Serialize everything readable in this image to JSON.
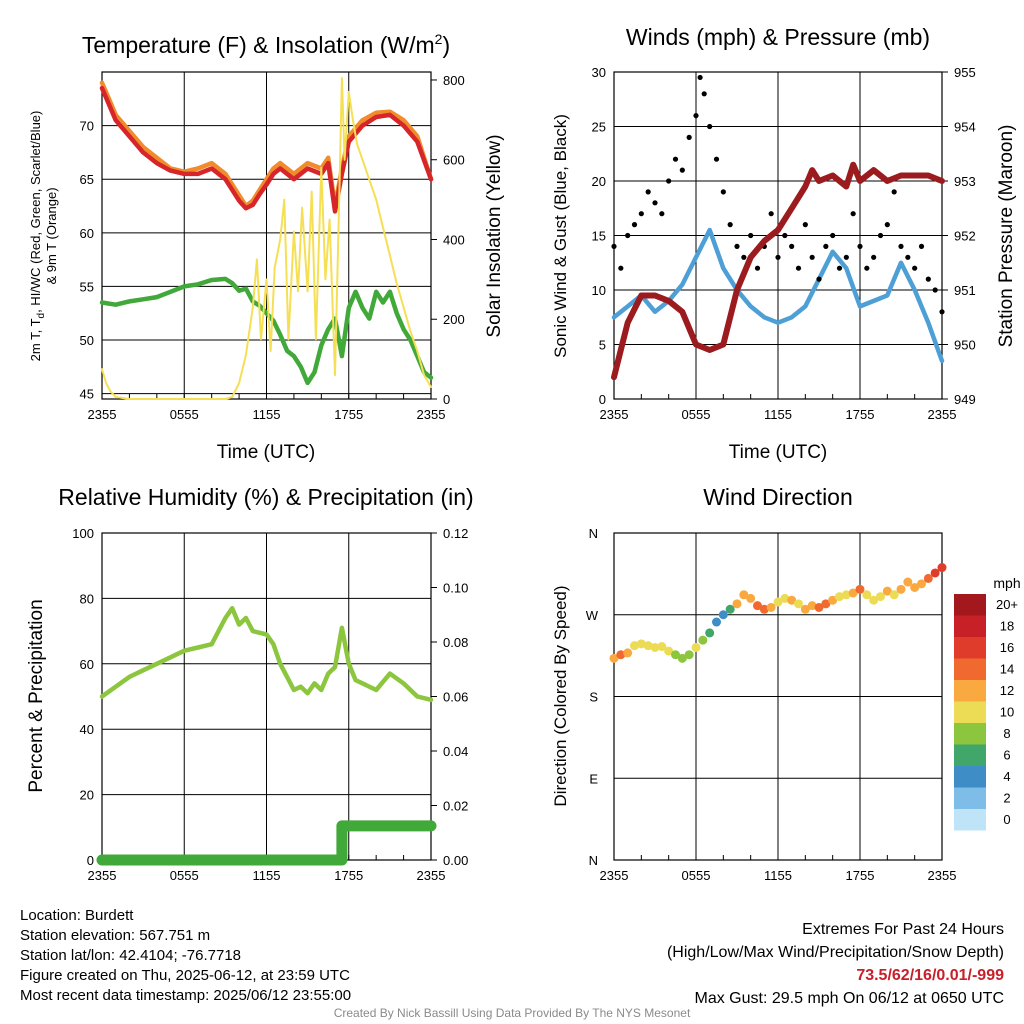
{
  "chart_data": [
    {
      "type": "line",
      "title": "Temperature (F) & Insolation (W/m",
      "title_sup": "2",
      "title_end": ")",
      "xlabel": "Time (UTC)",
      "ylabel": "2m T, T",
      "ylabel_sub": "d",
      "ylabel_rest": ", HI/WC (Red, Green, Scarlet/Blue)",
      "ylabel2": "& 9m T (Orange)",
      "y2label": "Solar Insolation (Yellow)",
      "x_ticks": [
        "2355",
        "0555",
        "1155",
        "1755",
        "2355"
      ],
      "y_ticks": [
        45,
        50,
        55,
        60,
        65,
        70
      ],
      "ylim": [
        44.5,
        75
      ],
      "y2_ticks": [
        0,
        200,
        400,
        600,
        800
      ],
      "y2lim": [
        0,
        820
      ],
      "grid": true,
      "x_hours": [
        0,
        6,
        12,
        18,
        24
      ],
      "series": [
        {
          "color": "#f08c2c",
          "axis": "left",
          "x": [
            0,
            0.5,
            1,
            2,
            3,
            4,
            5,
            6,
            7,
            8,
            9,
            10,
            10.5,
            11,
            11.5,
            12,
            12.5,
            13,
            14,
            15,
            16,
            16.5,
            17,
            17.5,
            18,
            19,
            20,
            21,
            22,
            23,
            24
          ],
          "y": [
            74,
            72.5,
            71,
            69.5,
            68,
            67,
            66,
            65.7,
            66,
            66.5,
            65.5,
            63.5,
            62.5,
            63,
            64,
            65,
            66,
            66.5,
            65.5,
            66.5,
            66,
            67,
            62.5,
            66,
            69,
            70.5,
            71.2,
            71.3,
            70.5,
            69,
            65
          ]
        },
        {
          "color": "#d7262a",
          "axis": "left",
          "x": [
            0,
            0.5,
            1,
            2,
            3,
            4,
            5,
            6,
            7,
            8,
            9,
            10,
            10.5,
            11,
            11.5,
            12,
            12.5,
            13,
            14,
            15,
            16,
            16.5,
            17,
            17.5,
            18,
            19,
            20,
            21,
            22,
            23,
            24
          ],
          "y": [
            73.5,
            72,
            70.5,
            69,
            67.5,
            66.5,
            65.8,
            65.5,
            65.5,
            66,
            65,
            63,
            62.3,
            62.6,
            63.6,
            64.5,
            65.5,
            66,
            65,
            66,
            65.5,
            66.5,
            62,
            65.5,
            68.5,
            70,
            70.8,
            71,
            70,
            68.5,
            65
          ]
        },
        {
          "color": "#41a83a",
          "axis": "left",
          "x": [
            0,
            1,
            2,
            3,
            4,
            5,
            6,
            7,
            8,
            9,
            9.5,
            10,
            10.5,
            11,
            11.5,
            12,
            12.5,
            13,
            13.5,
            14,
            14.5,
            15,
            15.5,
            16,
            16.5,
            17,
            17.5,
            18,
            18.5,
            19,
            19.5,
            20,
            20.5,
            21,
            21.5,
            22,
            22.5,
            23,
            23.5,
            24
          ],
          "y": [
            53.5,
            53.3,
            53.6,
            53.8,
            54,
            54.5,
            55,
            55.2,
            55.6,
            55.7,
            55.3,
            54.6,
            54.8,
            53.6,
            53.2,
            52.5,
            51.8,
            50.5,
            49,
            48.5,
            47.5,
            46,
            47,
            49.5,
            51,
            52,
            48.5,
            53,
            54.5,
            53,
            52,
            54.5,
            53.5,
            54.5,
            52.5,
            51,
            50,
            48.5,
            47,
            46.5
          ]
        },
        {
          "color": "#f5e055",
          "axis": "right",
          "x": [
            0,
            0.3,
            0.6,
            1,
            2,
            3,
            4,
            5,
            6,
            7,
            8,
            9,
            9.5,
            10,
            10.5,
            11,
            11.3,
            11.6,
            12,
            12.3,
            12.6,
            13,
            13.3,
            13.6,
            14,
            14.3,
            14.6,
            15,
            15.3,
            15.6,
            16,
            16.3,
            16.6,
            17,
            17.3,
            17.5,
            17.7,
            18,
            18.3,
            18.6,
            19,
            19.5,
            20,
            20.5,
            21,
            21.5,
            22,
            22.5,
            23,
            23.5,
            24
          ],
          "y": [
            75,
            40,
            20,
            5,
            0,
            0,
            0,
            0,
            0,
            0,
            0,
            0,
            5,
            40,
            110,
            230,
            350,
            150,
            300,
            120,
            330,
            400,
            500,
            150,
            420,
            270,
            480,
            270,
            520,
            150,
            580,
            300,
            450,
            60,
            500,
            805,
            600,
            770,
            700,
            640,
            600,
            550,
            500,
            430,
            360,
            290,
            230,
            170,
            120,
            60,
            30
          ]
        }
      ]
    },
    {
      "type": "line",
      "title": "Winds (mph) & Pressure (mb)",
      "xlabel": "Time (UTC)",
      "ylabel": "Sonic Wind & Gust (Blue, Black)",
      "y2label": "Station Pressure (Maroon)",
      "x_ticks": [
        "2355",
        "0555",
        "1155",
        "1755",
        "2355"
      ],
      "y_ticks": [
        0,
        5,
        10,
        15,
        20,
        25,
        30
      ],
      "ylim": [
        0,
        30
      ],
      "y2_ticks": [
        949,
        950,
        951,
        952,
        953,
        954,
        955
      ],
      "y2lim": [
        949,
        955
      ],
      "grid": true,
      "x_hours": [
        0,
        6,
        12,
        18,
        24
      ],
      "series": [
        {
          "name": "",
          "color": "#4d9fd6",
          "axis": "left",
          "x": [
            0,
            1,
            2,
            3,
            4,
            5,
            6,
            7,
            8,
            9,
            10,
            11,
            12,
            13,
            14,
            15,
            16,
            17,
            18,
            19,
            20,
            21,
            22,
            23,
            24
          ],
          "y": [
            7.5,
            8.5,
            9.5,
            8,
            9,
            10.5,
            13,
            15.5,
            12,
            10,
            8.5,
            7.5,
            7,
            7.5,
            8.5,
            11,
            13.5,
            12,
            8.5,
            9,
            9.5,
            12.5,
            10,
            7,
            3.5
          ]
        },
        {
          "name": "",
          "color": "#000000",
          "axis": "left",
          "mode": "points",
          "x": [
            0,
            0.5,
            1,
            1.5,
            2,
            2.5,
            3,
            3.5,
            4,
            4.5,
            5,
            5.5,
            6,
            6.3,
            6.6,
            7,
            7.5,
            8,
            8.5,
            9,
            9.5,
            10,
            10.5,
            11,
            11.5,
            12,
            12.5,
            13,
            13.5,
            14,
            14.5,
            15,
            15.5,
            16,
            16.5,
            17,
            17.5,
            18,
            18.5,
            19,
            19.5,
            20,
            20.5,
            21,
            21.5,
            22,
            22.5,
            23,
            23.5,
            24
          ],
          "y": [
            14,
            12,
            15,
            16,
            17,
            19,
            18,
            17,
            20,
            22,
            21,
            24,
            26,
            29.5,
            28,
            25,
            22,
            19,
            16,
            14,
            13,
            15,
            12,
            14,
            17,
            13,
            15,
            14,
            12,
            16,
            13,
            11,
            14,
            15,
            12,
            13,
            17,
            14,
            12,
            13,
            15,
            16,
            19,
            14,
            13,
            12,
            14,
            11,
            10,
            8
          ]
        },
        {
          "name": "",
          "color": "#9b1b1f",
          "axis": "right",
          "x": [
            0,
            0.5,
            1,
            2,
            3,
            4,
            5,
            6,
            7,
            8,
            9,
            10,
            11,
            12,
            13,
            14,
            14.5,
            15,
            16,
            17,
            17.5,
            18,
            19,
            20,
            21,
            22,
            23,
            24
          ],
          "y": [
            949.4,
            949.9,
            950.4,
            950.9,
            950.9,
            950.8,
            950.6,
            950.0,
            949.9,
            950.0,
            951.0,
            951.6,
            951.9,
            952.1,
            952.5,
            952.9,
            953.2,
            953.0,
            953.1,
            952.9,
            953.3,
            953.0,
            953.2,
            953.0,
            953.1,
            953.1,
            953.1,
            953.0
          ]
        }
      ]
    },
    {
      "type": "line",
      "title": "Relative Humidity (%) & Precipitation (in)",
      "ylabel": "Percent & Precipitation",
      "x_ticks": [
        "2355",
        "0555",
        "1155",
        "1755",
        "2355"
      ],
      "y_ticks": [
        0,
        20,
        40,
        60,
        80,
        100
      ],
      "ylim": [
        0,
        100
      ],
      "y2_ticks": [
        "0.00",
        "0.02",
        "0.04",
        "0.06",
        "0.08",
        "0.10",
        "0.12"
      ],
      "y2lim": [
        0,
        0.12
      ],
      "grid": true,
      "x_hours": [
        0,
        6,
        12,
        18,
        24
      ],
      "series": [
        {
          "color": "#8cc63f",
          "axis": "left",
          "x": [
            0,
            1,
            2,
            3,
            4,
            5,
            6,
            7,
            8,
            8.5,
            9,
            9.5,
            10,
            10.5,
            11,
            12,
            12.5,
            13,
            13.5,
            14,
            14.5,
            15,
            15.5,
            16,
            16.5,
            17,
            17.5,
            18,
            18.5,
            19,
            20,
            21,
            22,
            23,
            24
          ],
          "y": [
            50,
            53,
            56,
            58,
            60,
            62,
            64,
            65,
            66,
            70,
            74,
            77,
            72,
            74,
            70,
            69,
            66,
            60,
            56,
            52,
            53,
            51,
            54,
            52,
            57,
            59,
            71,
            60,
            55,
            54,
            52,
            57,
            54,
            50,
            49
          ]
        },
        {
          "color": "#41a83a",
          "axis": "right",
          "mode": "thick",
          "x": [
            0,
            17.5,
            17.5,
            24
          ],
          "y": [
            0,
            0,
            0.0125,
            0.0125
          ]
        }
      ]
    },
    {
      "type": "scatter",
      "title": "Wind Direction",
      "ylabel": "Direction (Colored By Speed)",
      "x_ticks": [
        "2355",
        "0555",
        "1155",
        "1755",
        "2355"
      ],
      "y_ticks": [
        "N",
        "E",
        "S",
        "W",
        "N"
      ],
      "ylim": [
        0,
        360
      ],
      "grid": true,
      "x_hours": [
        0,
        6,
        12,
        18,
        24
      ],
      "colorbar": {
        "title": "mph",
        "labels": [
          "20+",
          "18",
          "16",
          "14",
          "12",
          "10",
          "8",
          "6",
          "4",
          "2",
          "0"
        ],
        "colors": [
          "#a2181c",
          "#c72027",
          "#e03c2c",
          "#f06a30",
          "#f9a93f",
          "#ecdc55",
          "#8cc63f",
          "#41a66a",
          "#3e8dc6",
          "#7dbde8",
          "#bfe3f7"
        ]
      },
      "points": [
        {
          "x": 0,
          "y": 222,
          "c": 6
        },
        {
          "x": 0.5,
          "y": 226,
          "c": 7
        },
        {
          "x": 1,
          "y": 228,
          "c": 6
        },
        {
          "x": 1.5,
          "y": 236,
          "c": 5
        },
        {
          "x": 2,
          "y": 238,
          "c": 5
        },
        {
          "x": 2.5,
          "y": 236,
          "c": 5
        },
        {
          "x": 3,
          "y": 234,
          "c": 5
        },
        {
          "x": 3.5,
          "y": 235,
          "c": 5
        },
        {
          "x": 4,
          "y": 230,
          "c": 5
        },
        {
          "x": 4.5,
          "y": 226,
          "c": 4
        },
        {
          "x": 5,
          "y": 222,
          "c": 4
        },
        {
          "x": 5.5,
          "y": 226,
          "c": 4
        },
        {
          "x": 6,
          "y": 234,
          "c": 5
        },
        {
          "x": 6.5,
          "y": 242,
          "c": 4
        },
        {
          "x": 7,
          "y": 250,
          "c": 3
        },
        {
          "x": 7.5,
          "y": 262,
          "c": 2
        },
        {
          "x": 8,
          "y": 270,
          "c": 2
        },
        {
          "x": 8.5,
          "y": 276,
          "c": 3
        },
        {
          "x": 9,
          "y": 282,
          "c": 6
        },
        {
          "x": 9.5,
          "y": 292,
          "c": 6
        },
        {
          "x": 10,
          "y": 288,
          "c": 6
        },
        {
          "x": 10.5,
          "y": 280,
          "c": 7
        },
        {
          "x": 11,
          "y": 276,
          "c": 7
        },
        {
          "x": 11.5,
          "y": 278,
          "c": 6
        },
        {
          "x": 12,
          "y": 284,
          "c": 5
        },
        {
          "x": 12.5,
          "y": 288,
          "c": 5
        },
        {
          "x": 13,
          "y": 286,
          "c": 6
        },
        {
          "x": 13.5,
          "y": 282,
          "c": 5
        },
        {
          "x": 14,
          "y": 276,
          "c": 6
        },
        {
          "x": 14.5,
          "y": 280,
          "c": 6
        },
        {
          "x": 15,
          "y": 278,
          "c": 7
        },
        {
          "x": 15.5,
          "y": 282,
          "c": 7
        },
        {
          "x": 16,
          "y": 286,
          "c": 6
        },
        {
          "x": 16.5,
          "y": 290,
          "c": 5
        },
        {
          "x": 17,
          "y": 292,
          "c": 5
        },
        {
          "x": 17.5,
          "y": 294,
          "c": 6
        },
        {
          "x": 18,
          "y": 298,
          "c": 7
        },
        {
          "x": 18.5,
          "y": 292,
          "c": 5
        },
        {
          "x": 19,
          "y": 286,
          "c": 5
        },
        {
          "x": 19.5,
          "y": 290,
          "c": 5
        },
        {
          "x": 20,
          "y": 296,
          "c": 6
        },
        {
          "x": 20.5,
          "y": 292,
          "c": 5
        },
        {
          "x": 21,
          "y": 298,
          "c": 6
        },
        {
          "x": 21.5,
          "y": 306,
          "c": 6
        },
        {
          "x": 22,
          "y": 300,
          "c": 6
        },
        {
          "x": 22.5,
          "y": 304,
          "c": 6
        },
        {
          "x": 23,
          "y": 310,
          "c": 7
        },
        {
          "x": 23.5,
          "y": 316,
          "c": 8
        },
        {
          "x": 24,
          "y": 322,
          "c": 8
        }
      ]
    }
  ],
  "info": {
    "location": "Location: Burdett",
    "elevation": "Station elevation: 567.751 m",
    "latlon": "Station lat/lon: 42.4104; -76.7718",
    "created": "Figure created on Thu, 2025-06-12, at 23:59 UTC",
    "recent": "Most recent data timestamp: 2025/06/12 23:55:00"
  },
  "extremes": {
    "title": "Extremes For Past 24 Hours",
    "subtitle": "(High/Low/Max Wind/Precipitation/Snow Depth)",
    "values": "73.5/62/16/0.01/-999",
    "gust": "Max Gust: 29.5 mph On 06/12 at 0650 UTC"
  },
  "credit": "Created By Nick Bassill Using Data Provided By The NYS Mesonet"
}
